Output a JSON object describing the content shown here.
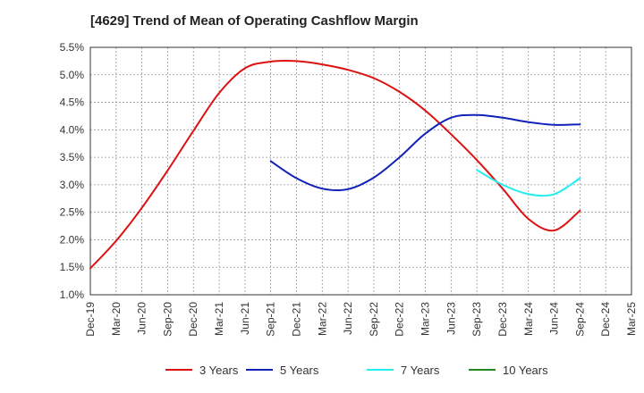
{
  "chart_data": {
    "type": "line",
    "title": "[4629]  Trend of Mean of Operating Cashflow Margin",
    "xlabel": "",
    "ylabel": "",
    "x_ticks": [
      "Dec-19",
      "Mar-20",
      "Jun-20",
      "Sep-20",
      "Dec-20",
      "Mar-21",
      "Jun-21",
      "Sep-21",
      "Dec-21",
      "Mar-22",
      "Jun-22",
      "Sep-22",
      "Dec-22",
      "Mar-23",
      "Jun-23",
      "Sep-23",
      "Dec-23",
      "Mar-24",
      "Jun-24",
      "Sep-24",
      "Dec-24",
      "Mar-25"
    ],
    "y_ticks": [
      "1.0%",
      "1.5%",
      "2.0%",
      "2.5%",
      "3.0%",
      "3.5%",
      "4.0%",
      "4.5%",
      "5.0%",
      "5.5%"
    ],
    "ylim": [
      1.0,
      5.5
    ],
    "y_unit": "%",
    "grid": true,
    "legend_position": "bottom",
    "series": [
      {
        "name": "3 Years",
        "color": "#dd1111",
        "x": [
          "Dec-19",
          "Mar-20",
          "Jun-20",
          "Sep-20",
          "Dec-20",
          "Mar-21",
          "Jun-21",
          "Sep-21",
          "Dec-21",
          "Mar-22",
          "Jun-22",
          "Sep-22",
          "Dec-22",
          "Mar-23",
          "Jun-23",
          "Sep-23",
          "Dec-23",
          "Mar-24",
          "Jun-24",
          "Sep-24"
        ],
        "values": [
          1.48,
          1.98,
          2.58,
          3.26,
          3.98,
          4.67,
          5.12,
          5.24,
          5.25,
          5.19,
          5.09,
          4.94,
          4.69,
          4.35,
          3.92,
          3.45,
          2.93,
          2.38,
          2.17,
          2.53
        ]
      },
      {
        "name": "5 Years",
        "color": "#1122bb",
        "x": [
          "Sep-21",
          "Dec-21",
          "Mar-22",
          "Jun-22",
          "Sep-22",
          "Dec-22",
          "Mar-23",
          "Jun-23",
          "Sep-23",
          "Dec-23",
          "Mar-24",
          "Jun-24",
          "Sep-24"
        ],
        "values": [
          3.43,
          3.12,
          2.93,
          2.92,
          3.13,
          3.5,
          3.93,
          4.22,
          4.27,
          4.22,
          4.14,
          4.09,
          4.1
        ]
      },
      {
        "name": "7 Years",
        "color": "#22eeee",
        "x": [
          "Sep-23",
          "Dec-23",
          "Mar-24",
          "Jun-24",
          "Sep-24"
        ],
        "values": [
          3.27,
          3.0,
          2.83,
          2.83,
          3.12
        ]
      },
      {
        "name": "10 Years",
        "color": "#228822",
        "x": [],
        "values": []
      }
    ]
  }
}
